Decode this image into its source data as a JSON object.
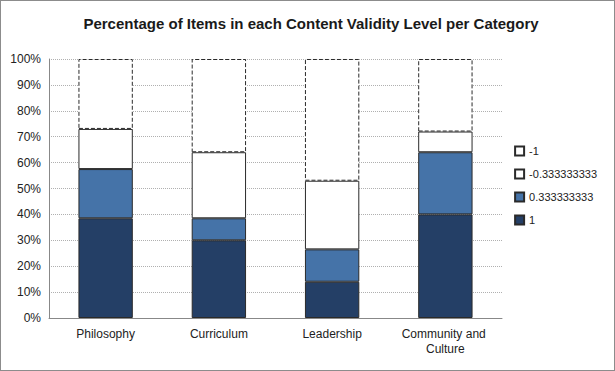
{
  "chart_data": {
    "type": "bar",
    "title": "Percentage of Items in each Content Validity Level per Category",
    "categories": [
      "Philosophy",
      "Curriculum",
      "Leadership",
      "Community and Culture"
    ],
    "stacked": true,
    "grid": true,
    "legend": "right",
    "series": [
      {
        "name": "1",
        "color": "#243f66",
        "line_style": "solid",
        "values": [
          38.5,
          30,
          14,
          40
        ]
      },
      {
        "name": "0.333333333",
        "color": "#4573a8",
        "line_style": "solid",
        "values": [
          19,
          8.5,
          12.5,
          24
        ]
      },
      {
        "name": "-0.333333333",
        "color": "#ffffff",
        "line_style": "solid",
        "values": [
          15.5,
          25.5,
          26.5,
          8
        ]
      },
      {
        "name": "-1",
        "color": "#ffffff",
        "line_style": "dashed",
        "values": [
          27,
          36,
          47,
          28
        ]
      }
    ],
    "ylim": [
      0,
      100
    ],
    "yticks": [
      {
        "value": 0,
        "label": "0%"
      },
      {
        "value": 10,
        "label": "10%"
      },
      {
        "value": 20,
        "label": "20%"
      },
      {
        "value": 30,
        "label": "30%"
      },
      {
        "value": 40,
        "label": "40%"
      },
      {
        "value": 50,
        "label": "50%"
      },
      {
        "value": 60,
        "label": "60%"
      },
      {
        "value": 70,
        "label": "70%"
      },
      {
        "value": 80,
        "label": "80%"
      },
      {
        "value": 90,
        "label": "90%"
      },
      {
        "value": 100,
        "label": "100%"
      }
    ]
  }
}
